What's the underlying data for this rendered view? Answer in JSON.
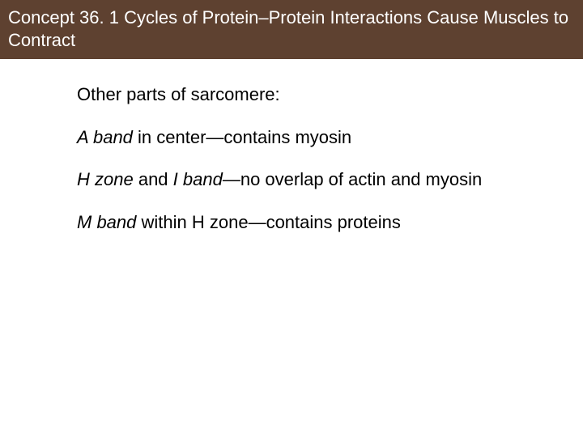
{
  "header": {
    "background_color": "#5e4130",
    "text_color": "#ffffff",
    "title": "Concept 36. 1 Cycles of Protein–Protein Interactions Cause Muscles to Contract",
    "fontsize": 22
  },
  "body": {
    "background_color": "#ffffff",
    "text_color": "#000000",
    "fontsize": 22,
    "paragraphs": [
      {
        "segments": [
          {
            "text": "Other parts of sarcomere:",
            "italic": false
          }
        ]
      },
      {
        "segments": [
          {
            "text": "A band",
            "italic": true
          },
          {
            "text": " in center—contains myosin",
            "italic": false
          }
        ]
      },
      {
        "segments": [
          {
            "text": "H zone",
            "italic": true
          },
          {
            "text": " and ",
            "italic": false
          },
          {
            "text": "I band",
            "italic": true
          },
          {
            "text": "—no overlap of actin and myosin",
            "italic": false
          }
        ]
      },
      {
        "segments": [
          {
            "text": "M band",
            "italic": true
          },
          {
            "text": " within H zone—contains proteins",
            "italic": false
          }
        ]
      }
    ]
  }
}
